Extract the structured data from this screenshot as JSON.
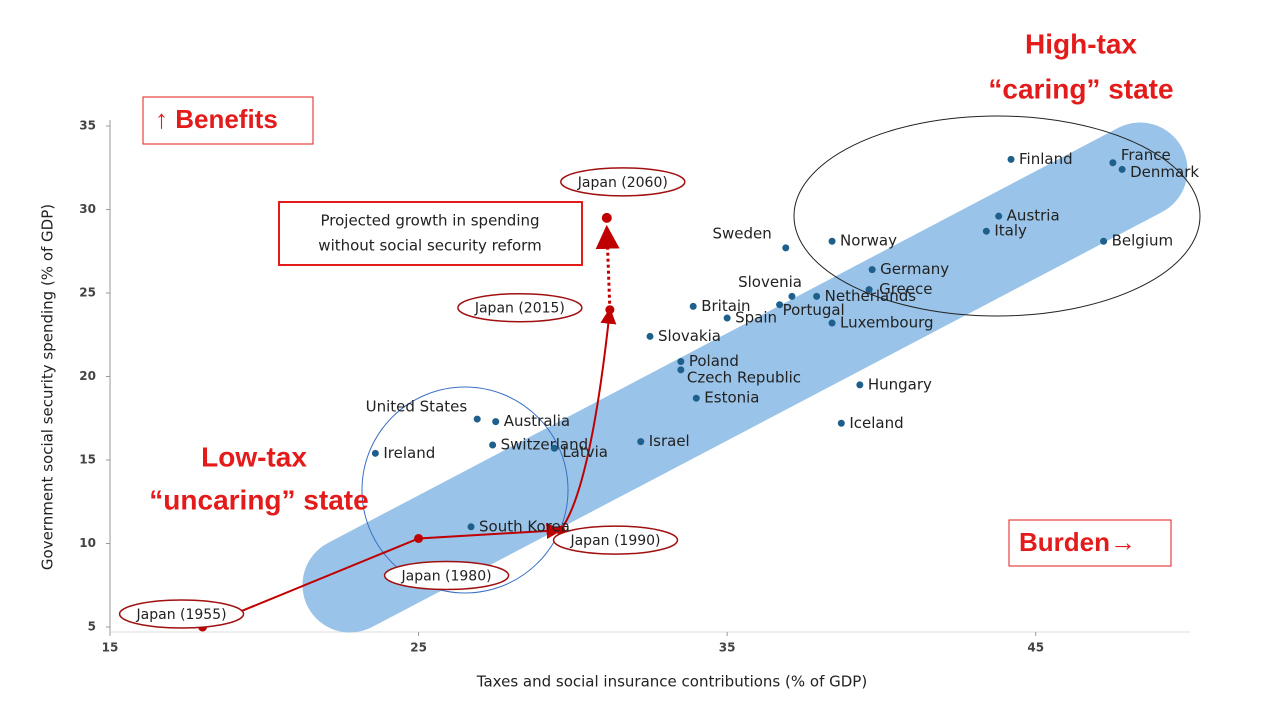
{
  "chart_data": {
    "type": "scatter",
    "x_label": "Taxes and social insurance contributions (% of GDP)",
    "y_label": "Government social security spending (% of GDP)",
    "xlim": [
      15,
      50
    ],
    "ylim": [
      5,
      35
    ],
    "xticks": [
      15,
      25,
      35,
      45
    ],
    "yticks": [
      5,
      10,
      15,
      20,
      25,
      30,
      35
    ],
    "countries": {
      "color": "#1f5f8b",
      "labels": [
        "United States",
        "Australia",
        "Ireland",
        "Switzerland",
        "Latvia",
        "South Korea",
        "Israel",
        "Estonia",
        "Czech Republic",
        "Poland",
        "Slovakia",
        "Britain",
        "Spain",
        "Portugal",
        "Slovenia",
        "Netherlands",
        "Luxembourg",
        "Hungary",
        "Iceland",
        "Sweden",
        "Norway",
        "Germany",
        "Greece",
        "Finland",
        "Austria",
        "Italy",
        "France",
        "Denmark",
        "Belgium"
      ],
      "x": [
        26.9,
        27.5,
        23.6,
        27.4,
        29.4,
        26.7,
        32.2,
        34.0,
        33.5,
        33.5,
        32.5,
        33.9,
        35.0,
        36.7,
        37.1,
        37.9,
        38.4,
        39.3,
        38.7,
        36.9,
        38.4,
        39.7,
        39.6,
        44.2,
        43.8,
        43.4,
        47.5,
        47.8,
        47.2
      ],
      "y": [
        17.45,
        17.3,
        15.4,
        15.9,
        15.7,
        11.0,
        16.1,
        18.7,
        20.4,
        20.9,
        22.4,
        24.2,
        23.5,
        24.3,
        24.8,
        24.8,
        23.2,
        19.5,
        17.2,
        27.7,
        28.1,
        26.4,
        25.2,
        33.0,
        29.6,
        28.7,
        32.8,
        32.4,
        28.1
      ]
    },
    "japan": {
      "color": "#c00000",
      "labels": [
        "Japan (1955)",
        "Japan (1980)",
        "Japan (1990)",
        "Japan (2015)",
        "Japan (2060)"
      ],
      "x": [
        18.0,
        25.0,
        29.6,
        31.2,
        31.1
      ],
      "y": [
        5.0,
        10.3,
        10.8,
        24.0,
        29.5
      ]
    },
    "annotations": {
      "benefits": "↑ Benefits",
      "burden": "Burden→",
      "low_tax": [
        "Low-tax",
        "“uncaring” state"
      ],
      "high_tax": [
        "High-tax",
        "“caring” state"
      ],
      "projected": [
        "Projected growth in spending",
        "without social security reform"
      ]
    }
  }
}
